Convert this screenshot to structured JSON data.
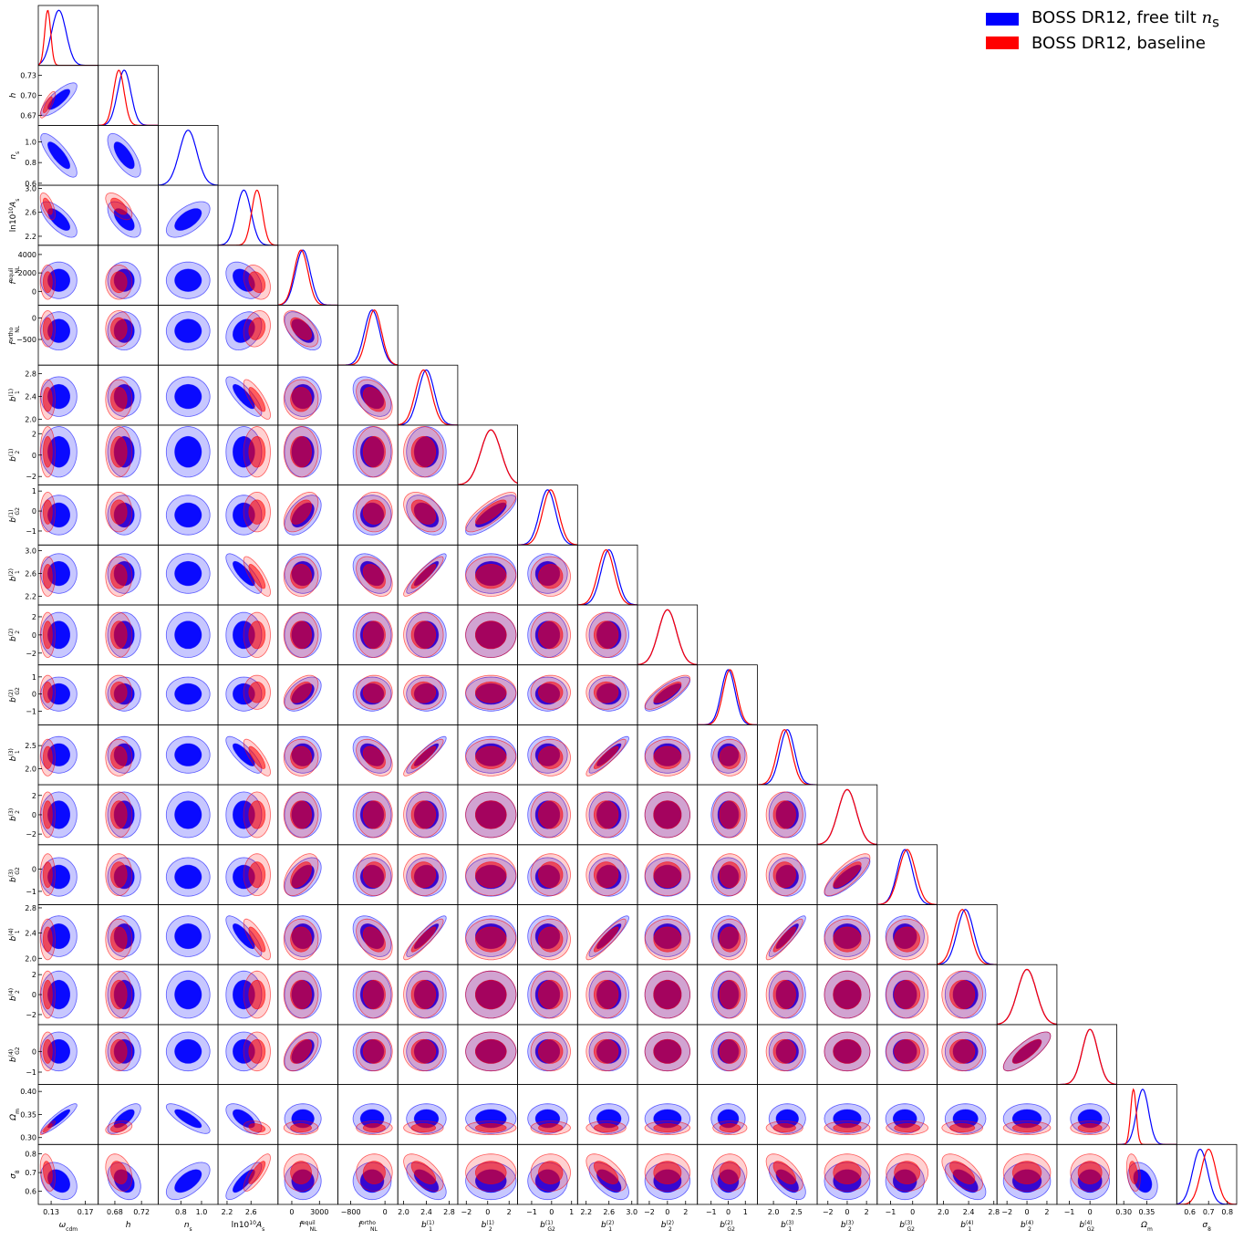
{
  "chart_data": {
    "type": "triangle-plot",
    "title": "",
    "legend_placement": "top-right",
    "series": [
      {
        "name": "BOSS DR12, free tilt n_s",
        "legend_label": "BOSS DR12, free tilt",
        "legend_italic": "n",
        "legend_sub": "s",
        "color": "#0000ff"
      },
      {
        "name": "BOSS DR12, baseline",
        "legend_label": "BOSS DR12, baseline",
        "legend_italic": "",
        "legend_sub": "",
        "color": "#ff0000"
      }
    ],
    "parameters": [
      {
        "label": "ω_cdm",
        "range": [
          0.115,
          0.185
        ],
        "ticks": [
          0.13,
          0.17
        ],
        "tick_labels": [
          "0.13",
          "0.17"
        ],
        "free": {
          "mean": 0.139,
          "sigma": 0.0085
        },
        "base": {
          "mean": 0.126,
          "sigma": 0.0035
        }
      },
      {
        "label": "h",
        "range": [
          0.655,
          0.745
        ],
        "ticks": [
          0.67,
          0.7,
          0.73
        ],
        "tick_labels": [
          "0.67",
          "0.70",
          "0.73"
        ],
        "x_tick_labels": [
          "0.68",
          "0.72"
        ],
        "x_ticks": [
          0.68,
          0.72
        ],
        "free": {
          "mean": 0.694,
          "sigma": 0.01
        },
        "base": {
          "mean": 0.686,
          "sigma": 0.008
        }
      },
      {
        "label": "n_s",
        "range": [
          0.58,
          1.16
        ],
        "ticks": [
          0.6,
          0.8,
          1.0
        ],
        "tick_labels": [
          "0.6",
          "0.8",
          "1.0"
        ],
        "x_tick_labels": [
          "0.8",
          "1.0"
        ],
        "x_ticks": [
          0.8,
          1.0
        ],
        "free": {
          "mean": 0.87,
          "sigma": 0.085
        },
        "base": null
      },
      {
        "label": "ln10^10 A_s",
        "range": [
          2.05,
          3.05
        ],
        "ticks": [
          2.2,
          2.6,
          3.0
        ],
        "tick_labels": [
          "2.2",
          "2.6",
          "3.0"
        ],
        "x_tick_labels": [
          "2.2",
          "2.6"
        ],
        "x_ticks": [
          2.2,
          2.6
        ],
        "free": {
          "mean": 2.48,
          "sigma": 0.12
        },
        "base": {
          "mean": 2.7,
          "sigma": 0.09
        }
      },
      {
        "label": "f_NL^equil",
        "range": [
          -1500,
          5000
        ],
        "ticks": [
          0,
          2000,
          4000
        ],
        "tick_labels": [
          "0",
          "2000",
          "4000"
        ],
        "x_tick_labels": [
          "0",
          "3000"
        ],
        "x_ticks": [
          0,
          3000
        ],
        "free": {
          "mean": 1200,
          "sigma": 800
        },
        "base": {
          "mean": 1000,
          "sigma": 750
        }
      },
      {
        "label": "f_NL^ortho",
        "range": [
          -1100,
          300
        ],
        "ticks": [
          -500,
          0
        ],
        "tick_labels": [
          "−500",
          "0"
        ],
        "x_tick_labels": [
          "−800",
          "0"
        ],
        "x_ticks": [
          -800,
          0
        ],
        "free": {
          "mean": -300,
          "sigma": 180
        },
        "base": {
          "mean": -250,
          "sigma": 170
        }
      },
      {
        "label": "b_1^(1)",
        "range": [
          1.9,
          2.95
        ],
        "ticks": [
          2.0,
          2.4,
          2.8
        ],
        "tick_labels": [
          "2.0",
          "2.4",
          "2.8"
        ],
        "free": {
          "mean": 2.4,
          "sigma": 0.14
        },
        "base": {
          "mean": 2.35,
          "sigma": 0.14
        }
      },
      {
        "label": "b_2^(1)",
        "range": [
          -2.8,
          2.8
        ],
        "ticks": [
          -2,
          0,
          2
        ],
        "tick_labels": [
          "−2",
          "0",
          "2"
        ],
        "free": {
          "mean": 0.3,
          "sigma": 0.95
        },
        "base": {
          "mean": 0.3,
          "sigma": 0.95
        }
      },
      {
        "label": "b_G2^(1)",
        "range": [
          -1.7,
          1.3
        ],
        "ticks": [
          -1,
          0,
          1
        ],
        "tick_labels": [
          "−1",
          "0",
          "1"
        ],
        "free": {
          "mean": -0.2,
          "sigma": 0.4
        },
        "base": {
          "mean": -0.05,
          "sigma": 0.4
        }
      },
      {
        "label": "b_1^(2)",
        "range": [
          2.05,
          3.1
        ],
        "ticks": [
          2.2,
          2.6,
          3.0
        ],
        "tick_labels": [
          "2.2",
          "2.6",
          "3.0"
        ],
        "free": {
          "mean": 2.6,
          "sigma": 0.14
        },
        "base": {
          "mean": 2.55,
          "sigma": 0.14
        }
      },
      {
        "label": "b_2^(2)",
        "range": [
          -3.3,
          3.3
        ],
        "ticks": [
          -2,
          0,
          2
        ],
        "tick_labels": [
          "−2",
          "0",
          "2"
        ],
        "free": {
          "mean": 0.0,
          "sigma": 1.0
        },
        "base": {
          "mean": 0.0,
          "sigma": 1.0
        }
      },
      {
        "label": "b_G2^(2)",
        "range": [
          -1.8,
          1.7
        ],
        "ticks": [
          -1,
          0,
          1
        ],
        "tick_labels": [
          "−1",
          "0",
          "1"
        ],
        "free": {
          "mean": 0.0,
          "sigma": 0.4
        },
        "base": {
          "mean": 0.1,
          "sigma": 0.4
        }
      },
      {
        "label": "b_1^(3)",
        "range": [
          1.65,
          2.95
        ],
        "ticks": [
          2.0,
          2.5
        ],
        "tick_labels": [
          "2.0",
          "2.5"
        ],
        "free": {
          "mean": 2.3,
          "sigma": 0.16
        },
        "base": {
          "mean": 2.24,
          "sigma": 0.16
        }
      },
      {
        "label": "b_2^(3)",
        "range": [
          -3.1,
          3.1
        ],
        "ticks": [
          -2,
          0,
          2
        ],
        "tick_labels": [
          "−2",
          "0",
          "2"
        ],
        "free": {
          "mean": 0.0,
          "sigma": 0.95
        },
        "base": {
          "mean": 0.0,
          "sigma": 0.95
        }
      },
      {
        "label": "b_G2^(3)",
        "range": [
          -1.6,
          1.1
        ],
        "ticks": [
          -1,
          0
        ],
        "tick_labels": [
          "−1",
          "0"
        ],
        "free": {
          "mean": -0.35,
          "sigma": 0.35
        },
        "base": {
          "mean": -0.25,
          "sigma": 0.38
        }
      },
      {
        "label": "b_1^(4)",
        "range": [
          1.9,
          2.85
        ],
        "ticks": [
          2.0,
          2.4,
          2.8
        ],
        "tick_labels": [
          "2.0",
          "2.4",
          "2.8"
        ],
        "free": {
          "mean": 2.35,
          "sigma": 0.13
        },
        "base": {
          "mean": 2.3,
          "sigma": 0.13
        }
      },
      {
        "label": "b_2^(4)",
        "range": [
          -3.0,
          3.0
        ],
        "ticks": [
          -2,
          0,
          2
        ],
        "tick_labels": [
          "−2",
          "0",
          "2"
        ],
        "free": {
          "mean": 0.0,
          "sigma": 0.95
        },
        "base": {
          "mean": 0.0,
          "sigma": 0.95
        }
      },
      {
        "label": "b_G2^(4)",
        "range": [
          -1.6,
          1.3
        ],
        "ticks": [
          -1,
          0
        ],
        "tick_labels": [
          "−1",
          "0"
        ],
        "free": {
          "mean": 0.0,
          "sigma": 0.38
        },
        "base": {
          "mean": 0.0,
          "sigma": 0.38
        }
      },
      {
        "label": "Ω_m",
        "range": [
          0.285,
          0.415
        ],
        "ticks": [
          0.3,
          0.35,
          0.4
        ],
        "tick_labels": [
          "0.30",
          "0.35",
          "0.40"
        ],
        "x_tick_labels": [
          "0.30",
          "0.35"
        ],
        "x_ticks": [
          0.3,
          0.35
        ],
        "free": {
          "mean": 0.341,
          "sigma": 0.013
        },
        "base": {
          "mean": 0.321,
          "sigma": 0.006
        }
      },
      {
        "label": "σ_8",
        "range": [
          0.53,
          0.85
        ],
        "ticks": [
          0.6,
          0.7,
          0.8
        ],
        "tick_labels": [
          "0.6",
          "0.7",
          "0.8"
        ],
        "free": {
          "mean": 0.655,
          "sigma": 0.04
        },
        "base": {
          "mean": 0.7,
          "sigma": 0.04
        }
      }
    ],
    "correlations": [
      {
        "i": 1,
        "j": 0,
        "free": 0.8,
        "base": 0.8
      },
      {
        "i": 2,
        "j": 0,
        "free": -0.8,
        "base": null
      },
      {
        "i": 2,
        "j": 1,
        "free": -0.7,
        "base": null
      },
      {
        "i": 3,
        "j": 0,
        "free": -0.7,
        "base": -0.6
      },
      {
        "i": 3,
        "j": 1,
        "free": -0.6,
        "base": -0.6
      },
      {
        "i": 3,
        "j": 2,
        "free": 0.6,
        "base": null
      },
      {
        "i": 4,
        "j": 3,
        "free": -0.4,
        "base": -0.3
      },
      {
        "i": 5,
        "j": 4,
        "free": -0.55,
        "base": -0.55
      },
      {
        "i": 5,
        "j": 3,
        "free": 0.3,
        "base": 0.2
      },
      {
        "i": 6,
        "j": 3,
        "free": -0.8,
        "base": -0.8
      },
      {
        "i": 6,
        "j": 5,
        "free": -0.4,
        "base": -0.4
      },
      {
        "i": 8,
        "j": 4,
        "free": 0.5,
        "base": 0.5
      },
      {
        "i": 8,
        "j": 6,
        "free": -0.4,
        "base": -0.4
      },
      {
        "i": 8,
        "j": 7,
        "free": 0.8,
        "base": 0.8
      },
      {
        "i": 9,
        "j": 3,
        "free": -0.8,
        "base": -0.8
      },
      {
        "i": 9,
        "j": 5,
        "free": -0.4,
        "base": -0.4
      },
      {
        "i": 9,
        "j": 6,
        "free": 0.9,
        "base": 0.9
      },
      {
        "i": 11,
        "j": 4,
        "free": 0.5,
        "base": 0.5
      },
      {
        "i": 11,
        "j": 10,
        "free": 0.8,
        "base": 0.8
      },
      {
        "i": 12,
        "j": 3,
        "free": -0.8,
        "base": -0.8
      },
      {
        "i": 12,
        "j": 5,
        "free": -0.4,
        "base": -0.4
      },
      {
        "i": 12,
        "j": 6,
        "free": 0.9,
        "base": 0.9
      },
      {
        "i": 12,
        "j": 9,
        "free": 0.9,
        "base": 0.9
      },
      {
        "i": 14,
        "j": 4,
        "free": 0.5,
        "base": 0.5
      },
      {
        "i": 14,
        "j": 13,
        "free": 0.8,
        "base": 0.8
      },
      {
        "i": 15,
        "j": 3,
        "free": -0.8,
        "base": -0.8
      },
      {
        "i": 15,
        "j": 5,
        "free": -0.4,
        "base": -0.4
      },
      {
        "i": 15,
        "j": 6,
        "free": 0.9,
        "base": 0.9
      },
      {
        "i": 15,
        "j": 9,
        "free": 0.9,
        "base": 0.9
      },
      {
        "i": 15,
        "j": 12,
        "free": 0.9,
        "base": 0.9
      },
      {
        "i": 17,
        "j": 4,
        "free": 0.5,
        "base": 0.5
      },
      {
        "i": 17,
        "j": 16,
        "free": 0.8,
        "base": 0.8
      },
      {
        "i": 18,
        "j": 0,
        "free": 0.9,
        "base": 0.9
      },
      {
        "i": 18,
        "j": 1,
        "free": 0.7,
        "base": 0.3
      },
      {
        "i": 18,
        "j": 2,
        "free": -0.8,
        "base": null
      },
      {
        "i": 18,
        "j": 3,
        "free": -0.6,
        "base": -0.3
      },
      {
        "i": 19,
        "j": 0,
        "free": -0.3,
        "base": -0.3
      },
      {
        "i": 19,
        "j": 1,
        "free": -0.3,
        "base": -0.3
      },
      {
        "i": 19,
        "j": 2,
        "free": 0.6,
        "base": null
      },
      {
        "i": 19,
        "j": 3,
        "free": 0.8,
        "base": 0.8
      },
      {
        "i": 19,
        "j": 6,
        "free": -0.6,
        "base": -0.6
      },
      {
        "i": 19,
        "j": 9,
        "free": -0.6,
        "base": -0.6
      },
      {
        "i": 19,
        "j": 12,
        "free": -0.6,
        "base": -0.6
      },
      {
        "i": 19,
        "j": 15,
        "free": -0.6,
        "base": -0.6
      },
      {
        "i": 19,
        "j": 18,
        "free": -0.3,
        "base": -0.3
      }
    ]
  }
}
